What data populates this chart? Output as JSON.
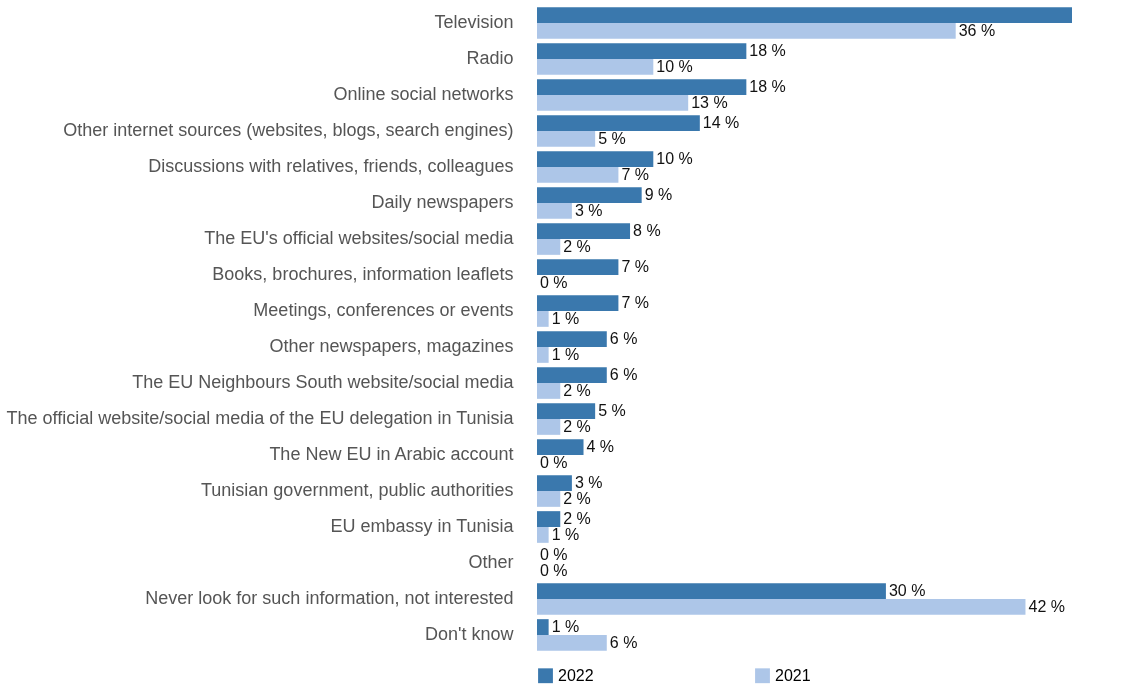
{
  "chart_data": {
    "type": "bar",
    "orientation": "horizontal",
    "legend": "bottom",
    "xlim": [
      0,
      46
    ],
    "categories": [
      "Television",
      "Radio",
      "Online social networks",
      "Other internet sources (websites, blogs, search engines)",
      "Discussions with relatives, friends, colleagues",
      "Daily newspapers",
      "The EU's official websites/social media",
      "Books, brochures, information leaflets",
      "Meetings, conferences or events",
      "Other newspapers, magazines",
      "The EU Neighbours South website/social media",
      "The official website/social media of the EU delegation in Tunisia",
      "The New EU in Arabic account",
      "Tunisian government, public authorities",
      "EU embassy in Tunisia",
      "Other",
      "Never look for such information, not interested",
      "Don't know"
    ],
    "series": [
      {
        "name": "2022",
        "color": "#3a78ad",
        "values": [
          46,
          18,
          18,
          14,
          10,
          9,
          8,
          7,
          7,
          6,
          6,
          5,
          4,
          3,
          2,
          0,
          30,
          1
        ],
        "value_labels": [
          null,
          "18 %",
          "18 %",
          "14 %",
          "10 %",
          "9 %",
          "8 %",
          "7 %",
          "7 %",
          "6 %",
          "6 %",
          "5 %",
          "4 %",
          "3 %",
          "2 %",
          "0 %",
          "30 %",
          "1 %"
        ]
      },
      {
        "name": "2021",
        "color": "#adc6e8",
        "values": [
          36,
          10,
          13,
          5,
          7,
          3,
          2,
          0,
          1,
          1,
          2,
          2,
          0,
          2,
          1,
          0,
          42,
          6
        ],
        "value_labels": [
          "36 %",
          "10 %",
          "13 %",
          "5 %",
          "7 %",
          "3 %",
          "2 %",
          "0 %",
          "1 %",
          "1 %",
          "2 %",
          "2 %",
          "0 %",
          "2 %",
          "1 %",
          "0 %",
          "42 %",
          "6 %"
        ]
      }
    ]
  }
}
